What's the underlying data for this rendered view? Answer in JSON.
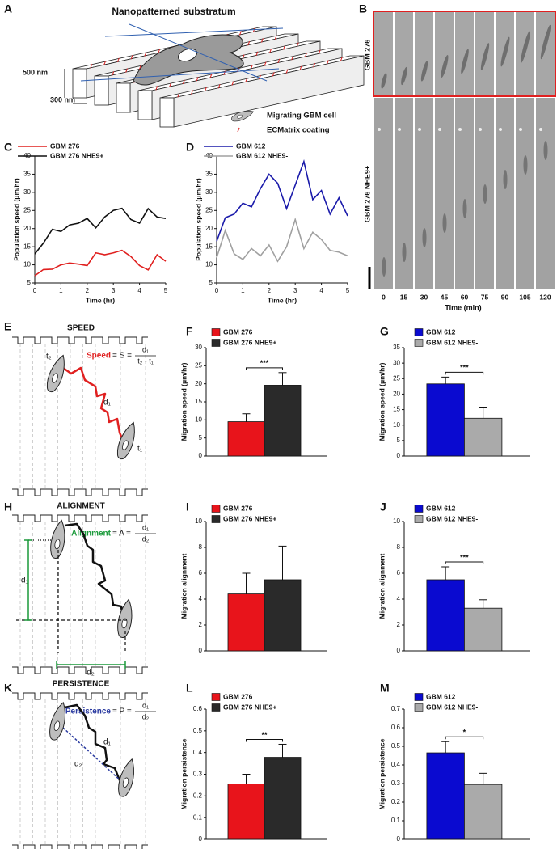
{
  "panel_labels": [
    "A",
    "B",
    "C",
    "D",
    "E",
    "F",
    "G",
    "H",
    "I",
    "J",
    "K",
    "L",
    "M"
  ],
  "panel_a": {
    "title": "Nanopatterned substratum",
    "height_label": "500 nm",
    "width_label": "300 nm",
    "legend": [
      "Migrating GBM cell",
      "ECMatrix coating"
    ]
  },
  "panel_b": {
    "rows": [
      "GBM 276",
      "GBM 276 NHE9+"
    ],
    "times": [
      0,
      15,
      30,
      45,
      60,
      75,
      90,
      105,
      120
    ],
    "x_label": "Time (min)"
  },
  "diagrams": [
    {
      "title": "SPEED",
      "measure": "Speed",
      "equation": "= S =",
      "numerator": "d₁",
      "denominator": "t₂ - t₁",
      "labels": [
        "t₂",
        "d₁",
        "t₁"
      ]
    },
    {
      "title": "ALIGNMENT",
      "measure": "Alignment",
      "equation": "= A =",
      "numerator": "d₁",
      "denominator": "d₂",
      "labels": [
        "d₁",
        "d₂"
      ]
    },
    {
      "title": "PERSISTENCE",
      "measure": "Persistence",
      "equation": "= P =",
      "numerator": "d₁",
      "denominator": "d₂",
      "labels": [
        "d₁",
        "d₂"
      ]
    }
  ],
  "chart_data": [
    {
      "type": "line",
      "x_label": "Time (hr)",
      "y_label": "Population speed (μm/hr)",
      "x": [
        0,
        0.33,
        0.67,
        1,
        1.33,
        1.67,
        2,
        2.33,
        2.67,
        3,
        3.33,
        3.67,
        4,
        4.33,
        4.67,
        5
      ],
      "series": [
        {
          "name": "GBM 276",
          "color": "#e0201f",
          "values": [
            7,
            8.7,
            8.8,
            10,
            10.5,
            10.2,
            9.8,
            13.3,
            12.8,
            13.3,
            14,
            12.3,
            9.8,
            8.6,
            12.8,
            11
          ]
        },
        {
          "name": "GBM 276 NHE9+",
          "color": "#111111",
          "values": [
            13,
            16,
            19.8,
            19.2,
            21,
            21.5,
            22.8,
            20.2,
            23.2,
            25,
            25.6,
            22.5,
            21.5,
            25.5,
            23.2,
            22.8
          ]
        }
      ],
      "xlim": [
        0,
        5
      ],
      "xticks": [
        0,
        1,
        2,
        3,
        4,
        5
      ],
      "ylim": [
        5,
        40
      ],
      "yticks": [
        5,
        10,
        15,
        20,
        25,
        30,
        35,
        40
      ]
    },
    {
      "type": "line",
      "x_label": "Time (hr)",
      "y_label": "Population speed (μm/hr)",
      "x": [
        0,
        0.33,
        0.67,
        1,
        1.33,
        1.67,
        2,
        2.33,
        2.67,
        3,
        3.33,
        3.67,
        4,
        4.33,
        4.67,
        5
      ],
      "series": [
        {
          "name": "GBM 612",
          "color": "#1a1aaa",
          "values": [
            16.5,
            23,
            24,
            27,
            26,
            31,
            35,
            32.5,
            25.5,
            32,
            38.5,
            28,
            30.5,
            24,
            28.5,
            23.5
          ]
        },
        {
          "name": "GBM 612 NHE9-",
          "color": "#a0a0a0",
          "values": [
            12,
            19.5,
            13,
            11.5,
            14.5,
            12.5,
            15.5,
            11,
            15,
            22.5,
            14.5,
            19,
            17,
            14,
            13.5,
            12.5
          ]
        }
      ],
      "xlim": [
        0,
        5
      ],
      "xticks": [
        0,
        1,
        2,
        3,
        4,
        5
      ],
      "ylim": [
        5,
        40
      ],
      "yticks": [
        5,
        10,
        15,
        20,
        25,
        30,
        35,
        40
      ]
    },
    {
      "type": "bar",
      "y_label": "Migration speed (μm/hr)",
      "categories": [
        "GBM 276",
        "GBM 276 NHE9+"
      ],
      "colors": [
        "#e8141b",
        "#2a2a2a"
      ],
      "values": [
        9.5,
        19.6
      ],
      "errors": [
        2.2,
        3.5
      ],
      "significance": "***",
      "ylim": [
        0,
        30
      ],
      "yticks": [
        0,
        5,
        10,
        15,
        20,
        25,
        30
      ]
    },
    {
      "type": "bar",
      "y_label": "Migration speed (μm/hr)",
      "categories": [
        "GBM 612",
        "GBM 612 NHE9-"
      ],
      "colors": [
        "#0a0ad0",
        "#aaaaaa"
      ],
      "values": [
        23.3,
        12.2
      ],
      "errors": [
        2.2,
        3.6
      ],
      "significance": "***",
      "ylim": [
        0,
        35
      ],
      "yticks": [
        0,
        5,
        10,
        15,
        20,
        25,
        30,
        35
      ]
    },
    {
      "type": "bar",
      "y_label": "Migration alignment",
      "categories": [
        "GBM 276",
        "GBM 276 NHE9+"
      ],
      "colors": [
        "#e8141b",
        "#2a2a2a"
      ],
      "values": [
        4.4,
        5.5
      ],
      "errors": [
        1.6,
        2.6
      ],
      "ylim": [
        0,
        10
      ],
      "yticks": [
        0,
        2,
        4,
        6,
        8,
        10
      ]
    },
    {
      "type": "bar",
      "y_label": "Migration alignment",
      "categories": [
        "GBM 612",
        "GBM 612 NHE9-"
      ],
      "colors": [
        "#0a0ad0",
        "#aaaaaa"
      ],
      "values": [
        5.5,
        3.3
      ],
      "errors": [
        1.0,
        0.65
      ],
      "significance": "***",
      "ylim": [
        0,
        10
      ],
      "yticks": [
        0,
        2,
        4,
        6,
        8,
        10
      ]
    },
    {
      "type": "bar",
      "y_label": "Migration persistence",
      "categories": [
        "GBM 276",
        "GBM 276 NHE9+"
      ],
      "colors": [
        "#e8141b",
        "#2a2a2a"
      ],
      "values": [
        0.255,
        0.378
      ],
      "errors": [
        0.045,
        0.06
      ],
      "significance": "**",
      "ylim": [
        0,
        0.6
      ],
      "yticks": [
        0,
        0.1,
        0.2,
        0.3,
        0.4,
        0.5,
        0.6
      ]
    },
    {
      "type": "bar",
      "y_label": "Migration persistence",
      "categories": [
        "GBM 612",
        "GBM 612 NHE9-"
      ],
      "colors": [
        "#0a0ad0",
        "#aaaaaa"
      ],
      "values": [
        0.465,
        0.295
      ],
      "errors": [
        0.06,
        0.06
      ],
      "significance": "*",
      "ylim": [
        0,
        0.7
      ],
      "yticks": [
        0,
        0.1,
        0.2,
        0.3,
        0.4,
        0.5,
        0.6,
        0.7
      ]
    }
  ]
}
